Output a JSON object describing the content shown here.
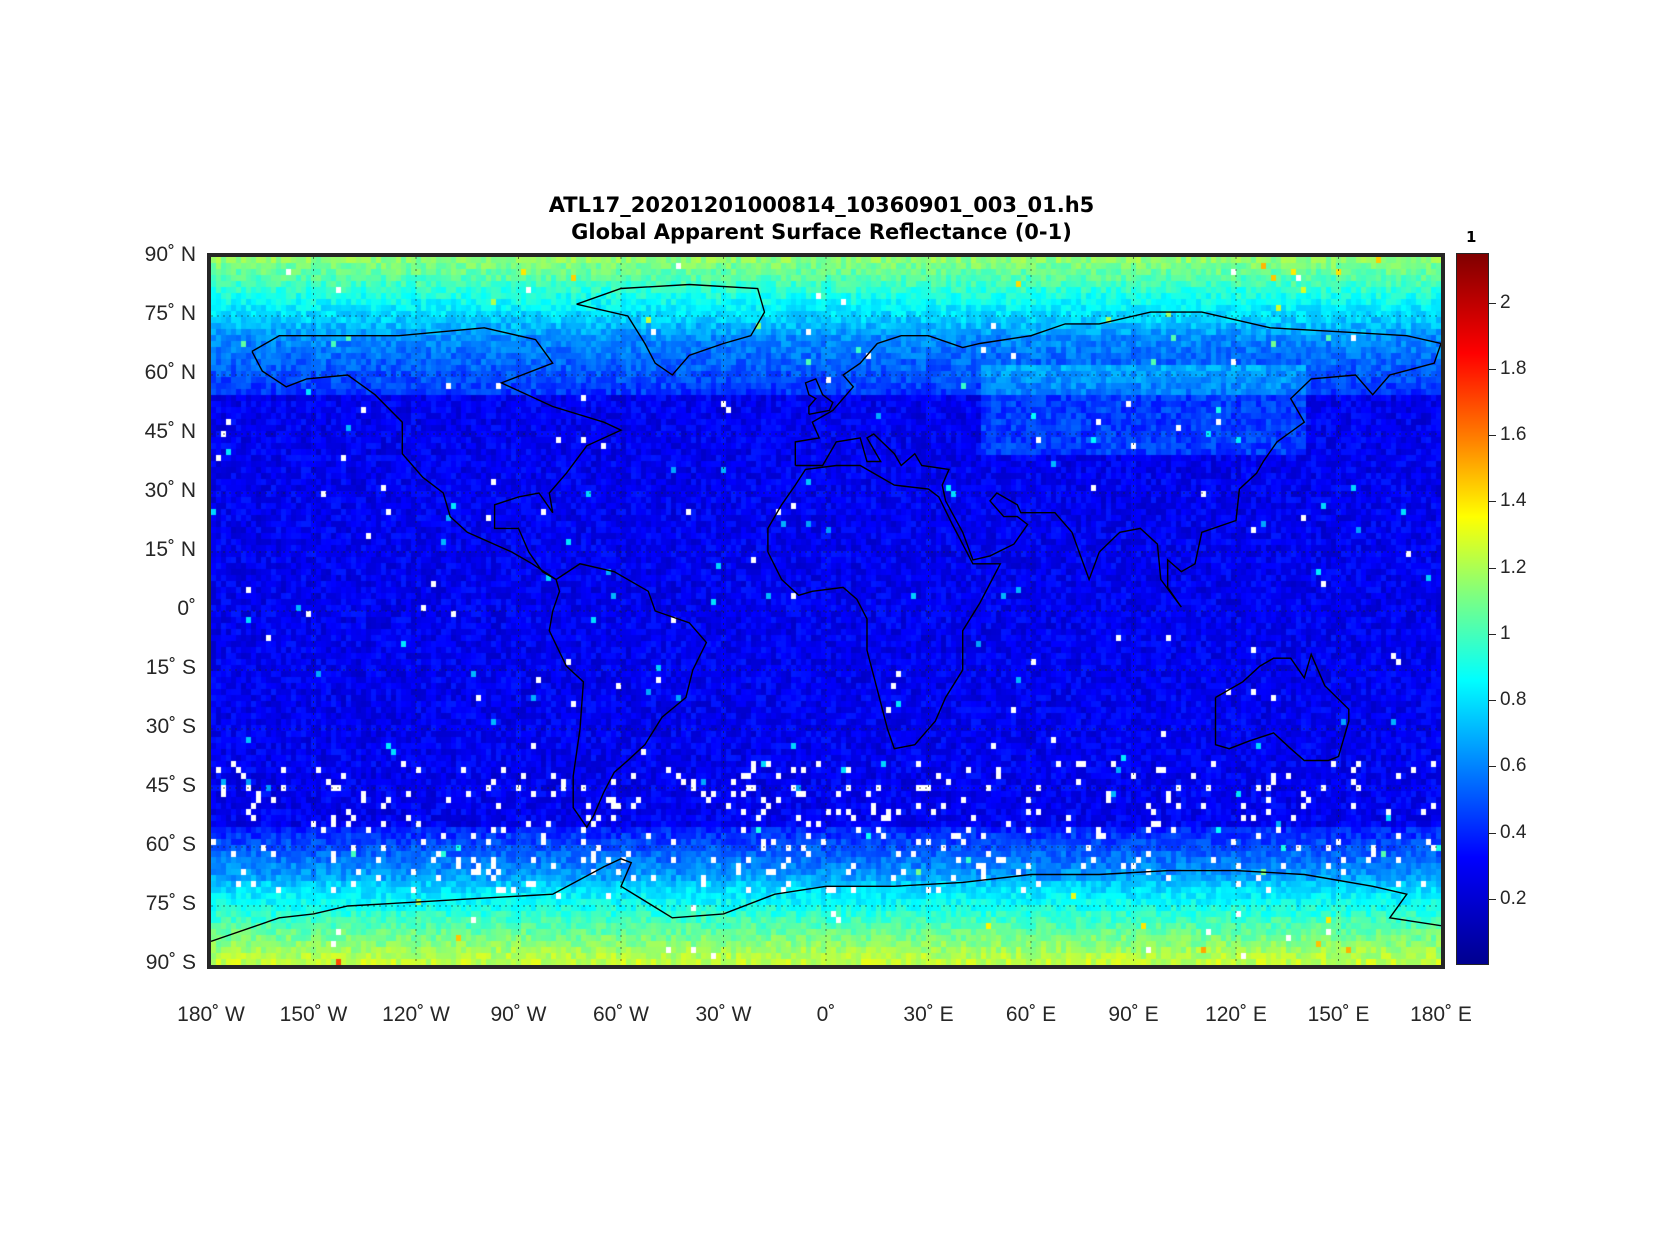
{
  "title_lines": [
    "ATL17_20201201000814_10360901_003_01.h5",
    "Global Apparent Surface Reflectance (0-1)"
  ],
  "lat_labels": [
    "90˚ N",
    "75˚ N",
    "60˚ N",
    "45˚ N",
    "30˚ N",
    "15˚ N",
    "0˚",
    "15˚ S",
    "30˚ S",
    "45˚ S",
    "60˚ S",
    "75˚ S",
    "90˚ S"
  ],
  "lon_labels": [
    "180˚ W",
    "150˚ W",
    "120˚ W",
    "90˚ W",
    "60˚ W",
    "30˚ W",
    "0˚",
    "30˚ E",
    "60˚ E",
    "90˚ E",
    "120˚ E",
    "150˚ E",
    "180˚ E"
  ],
  "colorbar": {
    "top_label": "1",
    "tick_labels": [
      "0.2",
      "0.4",
      "0.6",
      "0.8",
      "1",
      "1.2",
      "1.4",
      "1.6",
      "1.8",
      "2"
    ],
    "tick_values": [
      0.2,
      0.4,
      0.6,
      0.8,
      1.0,
      1.2,
      1.4,
      1.6,
      1.8,
      2.0
    ],
    "range": [
      0,
      2.15
    ],
    "colormap": "jet"
  },
  "map": {
    "projection": "equirectangular",
    "lat_range": [
      -90,
      90
    ],
    "lon_range": [
      -180,
      180
    ],
    "graticule": "dashed 15 degree grid"
  },
  "colors": {
    "background_low": "#0a1a86",
    "polar_high": "#1fb0ee",
    "no_data": "#ffffff",
    "coastline": "#000000"
  }
}
